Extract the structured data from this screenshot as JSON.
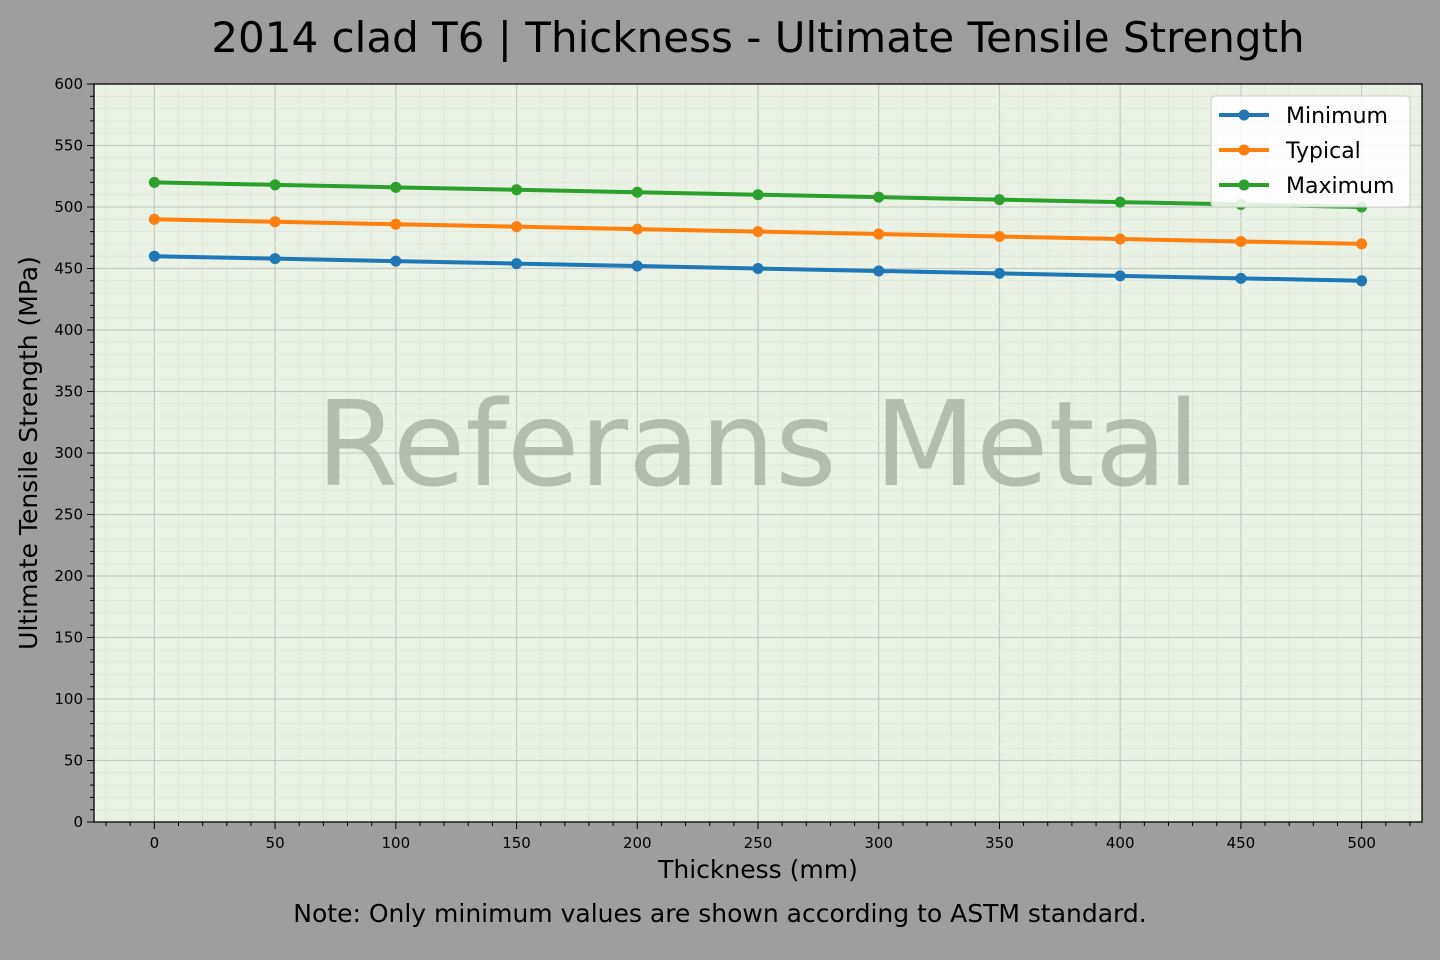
{
  "chart_data": {
    "type": "line",
    "title": "2014 clad T6 | Thickness - Ultimate Tensile Strength",
    "xlabel": "Thickness (mm)",
    "ylabel": "Ultimate Tensile Strength (MPa)",
    "note": "Note: Only minimum values are shown according to ASTM standard.",
    "watermark": "Referans Metal",
    "x": [
      0,
      50,
      100,
      150,
      200,
      250,
      300,
      350,
      400,
      450,
      500
    ],
    "xlim": [
      -25,
      525
    ],
    "ylim": [
      0,
      600
    ],
    "xticks": [
      0,
      50,
      100,
      150,
      200,
      250,
      300,
      350,
      400,
      450,
      500
    ],
    "yticks": [
      0,
      50,
      100,
      150,
      200,
      250,
      300,
      350,
      400,
      450,
      500,
      550,
      600
    ],
    "minor_tick_step": 10,
    "grid": true,
    "legend_position": "top-right",
    "plot_background": "#eaf2e6",
    "figure_background": "#9e9e9e",
    "series": [
      {
        "name": "Minimum",
        "color": "#1f77b4",
        "values": [
          460,
          458,
          456,
          454,
          452,
          450,
          448,
          446,
          444,
          442,
          440
        ]
      },
      {
        "name": "Typical",
        "color": "#ff7f0e",
        "values": [
          490,
          488,
          486,
          484,
          482,
          480,
          478,
          476,
          474,
          472,
          470
        ]
      },
      {
        "name": "Maximum",
        "color": "#2ca02c",
        "values": [
          520,
          518,
          516,
          514,
          512,
          510,
          508,
          506,
          504,
          502,
          500
        ]
      }
    ]
  }
}
